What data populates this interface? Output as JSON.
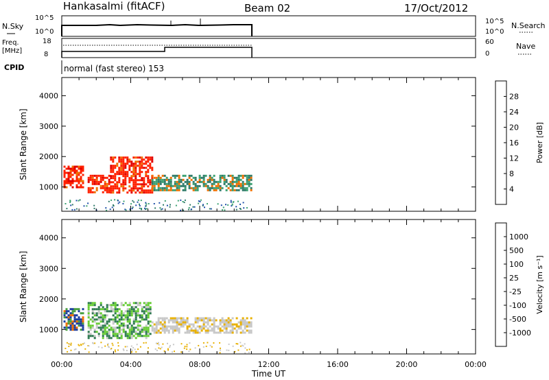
{
  "header": {
    "station": "Hankasalmi (fitACF)",
    "beam": "Beam 02",
    "date": "17/Oct/2012"
  },
  "top_panels": {
    "nsky": {
      "label": "N.Sky",
      "left_ticks": [
        "10^5",
        "10^0"
      ],
      "right_ticks": [
        "10^5",
        "10^0"
      ],
      "right_label": "N.Search"
    },
    "freq": {
      "label_line1": "Freq.",
      "label_line2": "[MHz]",
      "left_ticks": [
        "18",
        "8"
      ],
      "right_ticks": [
        "60",
        "0"
      ],
      "right_label": "Nave"
    },
    "cpid": {
      "label": "CPID",
      "value": "normal (fast stereo) 153"
    }
  },
  "chart_data": [
    {
      "type": "heatmap",
      "title": "",
      "ylabel": "Slant Range [km]",
      "xlabel": "",
      "y_ticks": [
        "1000",
        "2000",
        "3000",
        "4000"
      ],
      "ylim": [
        200,
        4600
      ],
      "xlim": [
        0,
        24
      ],
      "colorbar": {
        "label": "Power [dB]",
        "ticks": [
          "4",
          "8",
          "12",
          "16",
          "20",
          "24",
          "28"
        ],
        "colors": [
          "#1f1fd6",
          "#1f4fa8",
          "#2e7a68",
          "#3aa070",
          "#e0b000",
          "#f07000",
          "#ff2000",
          "#e00000"
        ]
      },
      "data_extent_hours": [
        0,
        11
      ],
      "echo_regions": [
        {
          "t_start": 0.1,
          "t_end": 1.2,
          "range_low": 1000,
          "range_high": 1700,
          "level": "high"
        },
        {
          "t_start": 1.5,
          "t_end": 2.8,
          "range_low": 800,
          "range_high": 1400,
          "level": "high"
        },
        {
          "t_start": 2.8,
          "t_end": 5.2,
          "range_low": 800,
          "range_high": 2000,
          "level": "high"
        },
        {
          "t_start": 5.2,
          "t_end": 11.0,
          "range_low": 900,
          "range_high": 1400,
          "level": "medium"
        }
      ]
    },
    {
      "type": "heatmap",
      "title": "",
      "ylabel": "Slant Range [km]",
      "xlabel": "Time UT",
      "y_ticks": [
        "1000",
        "2000",
        "3000",
        "4000"
      ],
      "ylim": [
        200,
        4600
      ],
      "xlim": [
        0,
        24
      ],
      "x_ticks": [
        "00:00",
        "04:00",
        "08:00",
        "12:00",
        "16:00",
        "20:00",
        "00:00"
      ],
      "colorbar": {
        "label": "Velocity [m s⁻¹]",
        "ticks": [
          "1000",
          "500",
          "100",
          "25",
          "-25",
          "-100",
          "-500",
          "-1000"
        ],
        "colors": [
          "#1e3fa0",
          "#2e7a50",
          "#4aa040",
          "#66cc33",
          "#c8c8c8",
          "#e8b000",
          "#f07000",
          "#ff2000",
          "#e00000"
        ]
      },
      "data_extent_hours": [
        0,
        11
      ],
      "echo_regions": [
        {
          "t_start": 0.1,
          "t_end": 1.2,
          "range_low": 1000,
          "range_high": 1700,
          "level": "negative"
        },
        {
          "t_start": 1.5,
          "t_end": 5.2,
          "range_low": 700,
          "range_high": 1900,
          "level": "positive"
        },
        {
          "t_start": 5.2,
          "t_end": 11.0,
          "range_low": 900,
          "range_high": 1400,
          "level": "near-zero"
        }
      ]
    }
  ]
}
